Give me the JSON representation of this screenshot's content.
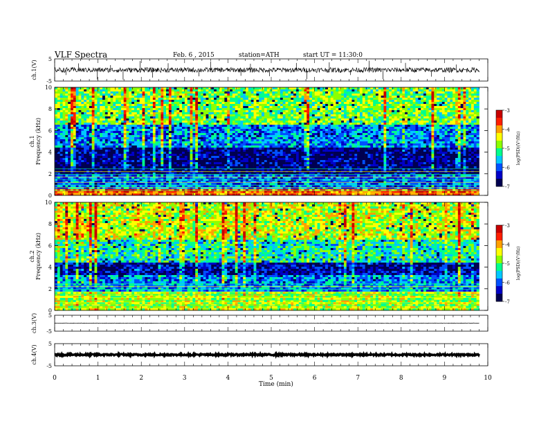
{
  "header": {
    "title": "VLF Spectra",
    "date": "Feb. 6 , 2015",
    "station": "station=ATH",
    "start": "start UT = 11:30:0"
  },
  "chart_data": [
    {
      "type": "line",
      "id": "ch1-waveform",
      "ylabel": "ch.1(V)",
      "ylim": [
        -5,
        5
      ],
      "yticks": [
        "5",
        "-5"
      ],
      "xlim": [
        0,
        10
      ],
      "baseline": 0,
      "noise_amplitude": 1.1,
      "spikes": [
        0.26,
        0.55,
        0.98,
        1.29,
        1.58,
        1.97,
        2.26,
        2.62,
        3.33,
        3.6,
        4.3,
        4.52,
        4.96,
        5.58,
        5.82,
        6.34,
        6.83,
        7.26,
        7.58,
        8.1,
        8.7,
        9.27
      ]
    },
    {
      "type": "heatmap",
      "id": "ch1-spectrogram",
      "ylabel": "ch.1 Frequency (kHz)",
      "ylim": [
        0,
        10
      ],
      "yticks": [
        "0",
        "2",
        "4",
        "6",
        "8",
        "10"
      ],
      "xlim": [
        0,
        9.8
      ],
      "colorbar": {
        "label": "log(PSD)(V²/Hz)",
        "range": [
          -7,
          -3
        ],
        "ticks": [
          "-3",
          "-4",
          "-5",
          "-6",
          "-7"
        ]
      },
      "bands_khz": [
        {
          "from": 0.0,
          "to": 0.6,
          "level": -3.8
        },
        {
          "from": 0.6,
          "to": 2.0,
          "level": -6.0
        },
        {
          "from": 2.0,
          "to": 4.5,
          "level": -6.7
        },
        {
          "from": 4.5,
          "to": 6.5,
          "level": -5.8
        },
        {
          "from": 6.5,
          "to": 10.0,
          "level": -4.9
        }
      ]
    },
    {
      "type": "heatmap",
      "id": "ch2-spectrogram",
      "ylabel": "ch.2 Frequency (kHz)",
      "ylim": [
        0,
        10
      ],
      "yticks": [
        "0",
        "2",
        "4",
        "6",
        "8",
        "10"
      ],
      "xlim": [
        0,
        9.8
      ],
      "colorbar": {
        "label": "log(PSD)(V²/Hz)",
        "range": [
          -7,
          -3
        ],
        "ticks": [
          "-3",
          "-4",
          "-5",
          "-6",
          "-7"
        ]
      },
      "bands_khz": [
        {
          "from": 0.0,
          "to": 1.8,
          "level": -4.7
        },
        {
          "from": 1.8,
          "to": 3.2,
          "level": -5.8
        },
        {
          "from": 3.2,
          "to": 4.5,
          "level": -6.5
        },
        {
          "from": 4.5,
          "to": 6.5,
          "level": -5.3
        },
        {
          "from": 6.5,
          "to": 10.0,
          "level": -4.6
        }
      ]
    },
    {
      "type": "line",
      "id": "ch3-waveform",
      "ylabel": "ch.3(V)",
      "ylim": [
        -5,
        5
      ],
      "yticks": [
        "5",
        "-5"
      ],
      "xlim": [
        0,
        10
      ],
      "baseline": 0,
      "noise_amplitude": 0.15,
      "spikes": []
    },
    {
      "type": "line",
      "id": "ch4-waveform",
      "ylabel": "ch.4(V)",
      "ylim": [
        -5,
        5
      ],
      "yticks": [
        "5",
        "-5"
      ],
      "xlim": [
        0,
        10
      ],
      "baseline": 0,
      "noise_amplitude": 0.35,
      "spikes": []
    }
  ],
  "x_axis": {
    "label": "Time (min)",
    "ticks": [
      "0",
      "1",
      "2",
      "3",
      "4",
      "5",
      "6",
      "7",
      "8",
      "9",
      "10"
    ]
  },
  "colors": {
    "colorscale": [
      "#000050",
      "#0000c8",
      "#0050ff",
      "#00c8ff",
      "#00ff8c",
      "#8cff00",
      "#ffff00",
      "#ffa000",
      "#ff1e00",
      "#c80000"
    ],
    "axis": "#000000",
    "trace": "#000000"
  }
}
